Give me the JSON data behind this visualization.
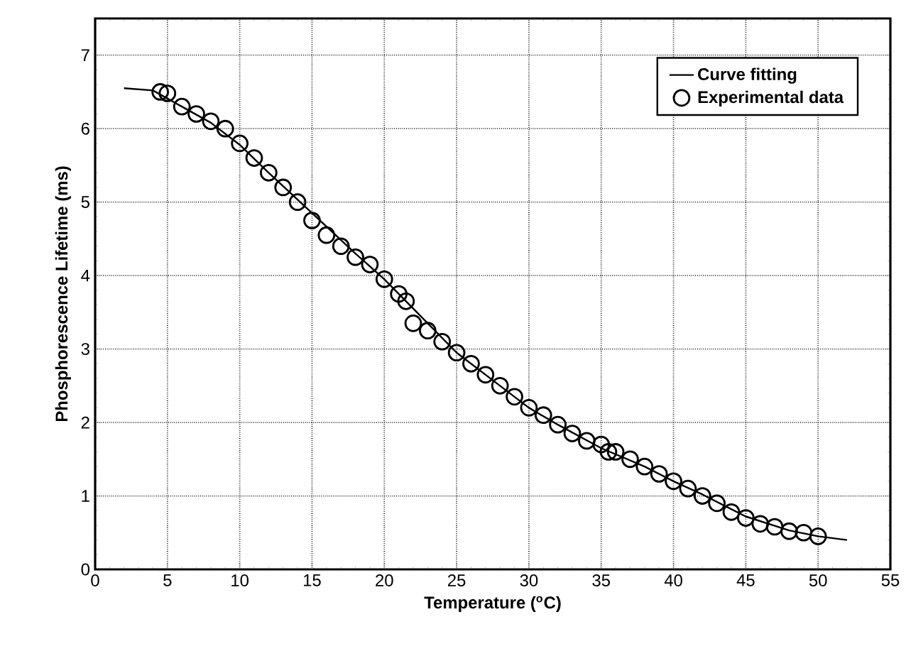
{
  "chart_data": {
    "type": "scatter",
    "xlabel": "Temperature ($^{o}$C)",
    "ylabel": "Phosphorescence Lifetime (ms)",
    "xlim": [
      0,
      55
    ],
    "ylim": [
      0,
      7.5
    ],
    "xticks": [
      0,
      5,
      10,
      15,
      20,
      25,
      30,
      35,
      40,
      45,
      50,
      55
    ],
    "yticks": [
      0,
      1,
      2,
      3,
      4,
      5,
      6,
      7
    ],
    "grid": true,
    "legend": "top right",
    "series": [
      {
        "name": "Curve fitting",
        "type": "line",
        "color": "#000000",
        "marker": "none",
        "line_style": "solid",
        "x": [
          2,
          4,
          6,
          8,
          10,
          12,
          15,
          18,
          20,
          22,
          25,
          28,
          30,
          32,
          35,
          38,
          40,
          42,
          45,
          48,
          50,
          52
        ],
        "values": [
          6.55,
          6.52,
          6.3,
          6.08,
          5.78,
          5.4,
          4.85,
          4.3,
          3.95,
          3.55,
          2.95,
          2.5,
          2.2,
          1.97,
          1.65,
          1.4,
          1.2,
          1.02,
          0.72,
          0.53,
          0.45,
          0.4
        ]
      },
      {
        "name": "Experimental data",
        "color": "#000000",
        "marker": "circle",
        "x": [
          4.5,
          5,
          6,
          7,
          8,
          9,
          10,
          11,
          12,
          13,
          14,
          15,
          16,
          17,
          18,
          19,
          20,
          21,
          21.5,
          22,
          23,
          24,
          25,
          26,
          27,
          28,
          29,
          30,
          31,
          32,
          33,
          34,
          35,
          35.5,
          36,
          37,
          38,
          39,
          40,
          41,
          42,
          43,
          44,
          45,
          46,
          47,
          48,
          49,
          50
        ],
        "values": [
          6.5,
          6.48,
          6.3,
          6.2,
          6.1,
          6.0,
          5.8,
          5.6,
          5.4,
          5.2,
          5.0,
          4.75,
          4.55,
          4.4,
          4.25,
          4.15,
          3.95,
          3.75,
          3.65,
          3.35,
          3.25,
          3.1,
          2.95,
          2.8,
          2.65,
          2.5,
          2.35,
          2.2,
          2.1,
          1.97,
          1.85,
          1.75,
          1.7,
          1.6,
          1.6,
          1.5,
          1.4,
          1.3,
          1.2,
          1.1,
          1.0,
          0.9,
          0.78,
          0.7,
          0.62,
          0.58,
          0.52,
          0.5,
          0.45
        ]
      }
    ]
  }
}
